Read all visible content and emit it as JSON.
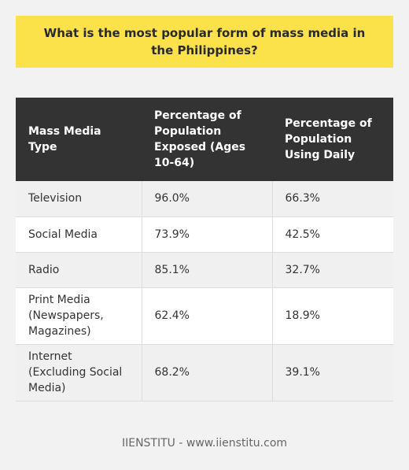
{
  "title": "What is the most popular form of mass media in the Philippines?",
  "table": {
    "headers": [
      "Mass Media Type",
      "Percentage of Population Exposed (Ages 10-64)",
      "Percentage of Population Using Daily"
    ],
    "rows": [
      [
        "Television",
        "96.0%",
        "66.3%"
      ],
      [
        "Social Media",
        "73.9%",
        "42.5%"
      ],
      [
        "Radio",
        "85.1%",
        "32.7%"
      ],
      [
        "Print Media (Newspapers, Magazines)",
        "62.4%",
        "18.9%"
      ],
      [
        "Internet (Excluding Social Media)",
        "68.2%",
        "39.1%"
      ]
    ]
  },
  "footer": "IIENSTITU - www.iienstitu.com",
  "colors": {
    "title_bg": "#fbe14a",
    "header_bg": "#333333",
    "page_bg": "#f2f2f2"
  }
}
